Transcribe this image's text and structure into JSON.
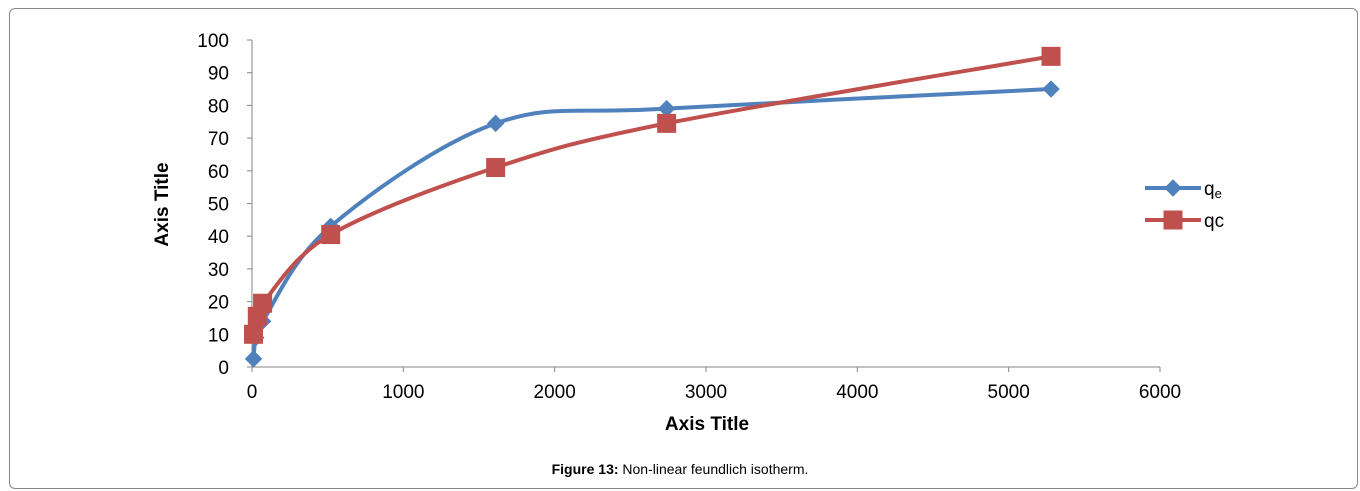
{
  "caption": {
    "label": "Figure 13:",
    "text": " Non-linear feundlich isotherm."
  },
  "chart_data": {
    "type": "line",
    "smooth": true,
    "xlabel": "Axis Title",
    "ylabel": "Axis Title",
    "xlim": [
      0,
      6000
    ],
    "ylim": [
      0,
      100
    ],
    "x_ticks": [
      "0",
      "1000",
      "2000",
      "3000",
      "4000",
      "5000",
      "6000"
    ],
    "y_ticks": [
      "0",
      "10",
      "20",
      "30",
      "40",
      "50",
      "60",
      "70",
      "80",
      "90",
      "100"
    ],
    "grid": false,
    "legend_position": "right",
    "series": [
      {
        "name": "qe",
        "name_main": "q",
        "name_sub": "e",
        "marker": "diamond",
        "color": "#4f81bd",
        "points": [
          [
            10,
            2.5
          ],
          [
            25,
            9
          ],
          [
            70,
            14
          ],
          [
            520,
            43
          ],
          [
            1610,
            74.5
          ],
          [
            2740,
            79
          ],
          [
            5280,
            85
          ]
        ]
      },
      {
        "name": "qc",
        "marker": "square",
        "color": "#c0504d",
        "points": [
          [
            10,
            10
          ],
          [
            35,
            15.5
          ],
          [
            70,
            19.5
          ],
          [
            520,
            40.5
          ],
          [
            1610,
            61
          ],
          [
            2740,
            74.5
          ],
          [
            5280,
            95
          ]
        ]
      }
    ]
  }
}
